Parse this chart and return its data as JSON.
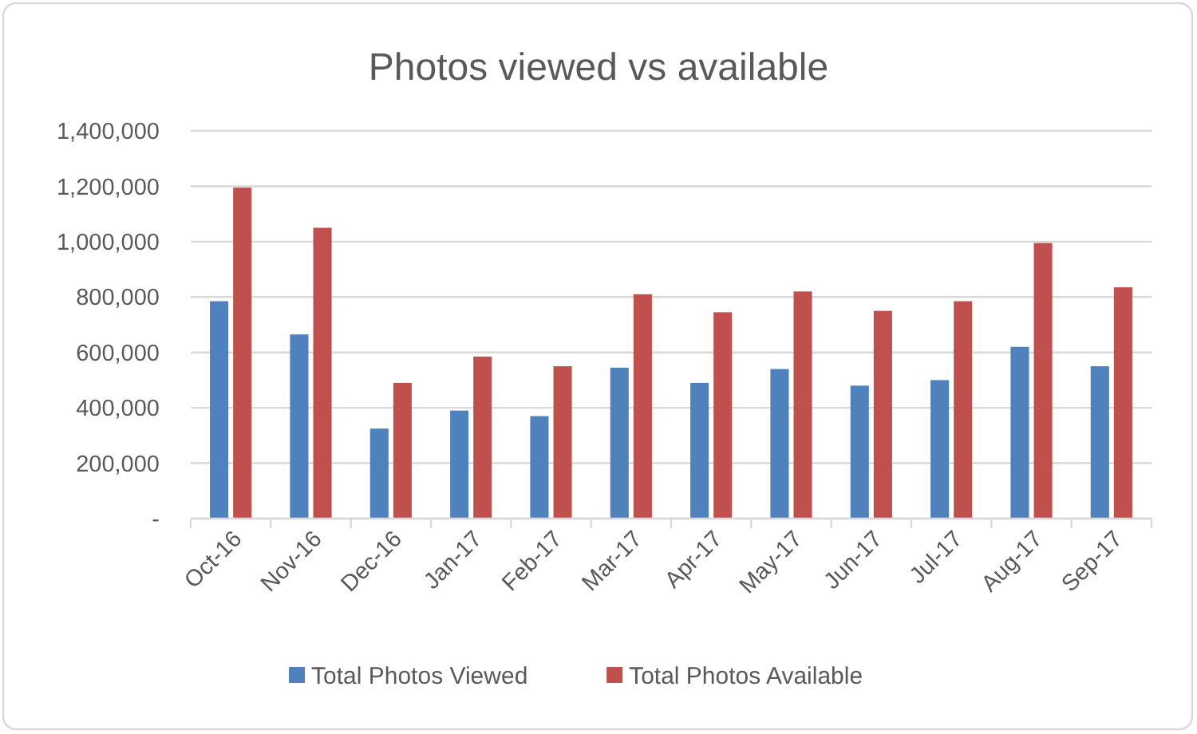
{
  "chart_data": {
    "type": "bar",
    "title": "Photos viewed vs available",
    "categories": [
      "Oct-16",
      "Nov-16",
      "Dec-16",
      "Jan-17",
      "Feb-17",
      "Mar-17",
      "Apr-17",
      "May-17",
      "Jun-17",
      "Jul-17",
      "Aug-17",
      "Sep-17"
    ],
    "series": [
      {
        "name": "Total Photos Viewed",
        "color": "#4f81bd",
        "values": [
          785000,
          665000,
          325000,
          390000,
          370000,
          545000,
          490000,
          540000,
          480000,
          500000,
          620000,
          550000
        ]
      },
      {
        "name": "Total Photos Available",
        "color": "#c0504d",
        "values": [
          1195000,
          1050000,
          490000,
          585000,
          550000,
          810000,
          745000,
          820000,
          750000,
          785000,
          995000,
          835000
        ]
      }
    ],
    "ylim": [
      0,
      1400000
    ],
    "yticks": [
      {
        "value": 0,
        "label": "-"
      },
      {
        "value": 200000,
        "label": "200,000"
      },
      {
        "value": 400000,
        "label": "400,000"
      },
      {
        "value": 600000,
        "label": "600,000"
      },
      {
        "value": 800000,
        "label": "800,000"
      },
      {
        "value": 1000000,
        "label": "1,000,000"
      },
      {
        "value": 1200000,
        "label": "1,200,000"
      },
      {
        "value": 1400000,
        "label": "1,400,000"
      }
    ],
    "grid": "y",
    "legend": "bottom"
  }
}
